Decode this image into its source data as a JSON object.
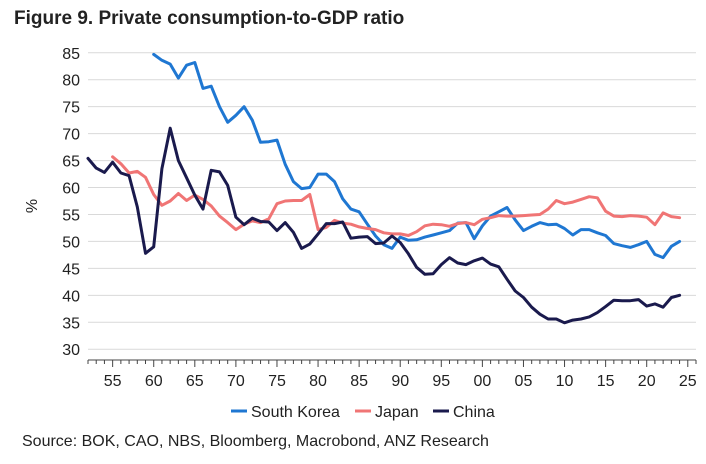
{
  "chart_data": {
    "type": "line",
    "title": "Figure 9. Private consumption-to-GDP ratio",
    "xlabel": "",
    "ylabel": "%",
    "xlim": [
      1952,
      2026
    ],
    "ylim": [
      28,
      87
    ],
    "y_ticks": [
      30,
      35,
      40,
      45,
      50,
      55,
      60,
      65,
      70,
      75,
      80,
      85
    ],
    "x_ticks": [
      {
        "value": 1955,
        "label": "55"
      },
      {
        "value": 1960,
        "label": "60"
      },
      {
        "value": 1965,
        "label": "65"
      },
      {
        "value": 1970,
        "label": "70"
      },
      {
        "value": 1975,
        "label": "75"
      },
      {
        "value": 1980,
        "label": "80"
      },
      {
        "value": 1985,
        "label": "85"
      },
      {
        "value": 1990,
        "label": "90"
      },
      {
        "value": 1995,
        "label": "95"
      },
      {
        "value": 2000,
        "label": "00"
      },
      {
        "value": 2005,
        "label": "05"
      },
      {
        "value": 2010,
        "label": "10"
      },
      {
        "value": 2015,
        "label": "15"
      },
      {
        "value": 2020,
        "label": "20"
      },
      {
        "value": 2025,
        "label": "25"
      }
    ],
    "legend_position": "bottom",
    "series": [
      {
        "name": "South Korea",
        "color": "#1f77d2",
        "x": [
          1960,
          1961,
          1962,
          1963,
          1964,
          1965,
          1966,
          1967,
          1968,
          1969,
          1970,
          1971,
          1972,
          1973,
          1974,
          1975,
          1976,
          1977,
          1978,
          1979,
          1980,
          1981,
          1982,
          1983,
          1984,
          1985,
          1986,
          1987,
          1988,
          1989,
          1990,
          1991,
          1992,
          1993,
          1994,
          1995,
          1996,
          1997,
          1998,
          1999,
          2000,
          2001,
          2002,
          2003,
          2004,
          2005,
          2006,
          2007,
          2008,
          2009,
          2010,
          2011,
          2012,
          2013,
          2014,
          2015,
          2016,
          2017,
          2018,
          2019,
          2020,
          2021,
          2022,
          2023,
          2024
        ],
        "y": [
          84.7,
          83.6,
          82.9,
          80.3,
          82.7,
          83.2,
          78.4,
          78.8,
          75.0,
          72.1,
          73.4,
          75.0,
          72.5,
          68.4,
          68.5,
          68.8,
          64.3,
          61.1,
          59.8,
          60.0,
          62.5,
          62.5,
          61.1,
          57.9,
          56.0,
          55.5,
          53.2,
          51.0,
          49.4,
          48.7,
          50.8,
          50.2,
          50.3,
          50.8,
          51.2,
          51.6,
          52.0,
          53.4,
          53.5,
          50.5,
          52.9,
          54.7,
          55.5,
          56.3,
          54.0,
          52.0,
          52.8,
          53.5,
          53.1,
          53.2,
          52.4,
          51.2,
          52.2,
          52.2,
          51.6,
          51.1,
          49.6,
          49.2,
          48.9,
          49.4,
          50.0,
          47.6,
          47.0,
          49.1,
          50.0
        ]
      },
      {
        "name": "Japan",
        "color": "#f07575",
        "x": [
          1955,
          1956,
          1957,
          1958,
          1959,
          1960,
          1961,
          1962,
          1963,
          1964,
          1965,
          1966,
          1967,
          1968,
          1969,
          1970,
          1971,
          1972,
          1973,
          1974,
          1975,
          1976,
          1977,
          1978,
          1979,
          1980,
          1981,
          1982,
          1983,
          1984,
          1985,
          1986,
          1987,
          1988,
          1989,
          1990,
          1991,
          1992,
          1993,
          1994,
          1995,
          1996,
          1997,
          1998,
          1999,
          2000,
          2001,
          2002,
          2003,
          2004,
          2005,
          2006,
          2007,
          2008,
          2009,
          2010,
          2011,
          2012,
          2013,
          2014,
          2015,
          2016,
          2017,
          2018,
          2019,
          2020,
          2021,
          2022,
          2023,
          2024
        ],
        "y": [
          65.7,
          64.4,
          62.7,
          63.0,
          61.9,
          58.7,
          56.7,
          57.5,
          58.9,
          57.6,
          58.6,
          57.8,
          56.6,
          54.7,
          53.5,
          52.2,
          53.2,
          53.8,
          53.5,
          54.2,
          57.0,
          57.5,
          57.6,
          57.6,
          58.7,
          52.2,
          52.6,
          53.9,
          53.4,
          53.2,
          52.7,
          52.4,
          52.2,
          51.6,
          51.4,
          51.4,
          51.1,
          51.8,
          52.9,
          53.2,
          53.1,
          52.8,
          53.3,
          53.5,
          53.1,
          54.1,
          54.4,
          54.8,
          54.7,
          54.7,
          54.8,
          54.9,
          55.0,
          56.0,
          57.6,
          57.0,
          57.3,
          57.8,
          58.3,
          58.1,
          55.6,
          54.7,
          54.6,
          54.8,
          54.7,
          54.5,
          53.1,
          55.3,
          54.6,
          54.4
        ]
      },
      {
        "name": "China",
        "color": "#1a1a4d",
        "x": [
          1952,
          1953,
          1954,
          1955,
          1956,
          1957,
          1958,
          1959,
          1960,
          1961,
          1962,
          1963,
          1964,
          1965,
          1966,
          1967,
          1968,
          1969,
          1970,
          1971,
          1972,
          1973,
          1974,
          1975,
          1976,
          1977,
          1978,
          1979,
          1980,
          1981,
          1982,
          1983,
          1984,
          1985,
          1986,
          1987,
          1988,
          1989,
          1990,
          1991,
          1992,
          1993,
          1994,
          1995,
          1996,
          1997,
          1998,
          1999,
          2000,
          2001,
          2002,
          2003,
          2004,
          2005,
          2006,
          2007,
          2008,
          2009,
          2010,
          2011,
          2012,
          2013,
          2014,
          2015,
          2016,
          2017,
          2018,
          2019,
          2020,
          2021,
          2022,
          2023,
          2024
        ],
        "y": [
          65.4,
          63.6,
          62.8,
          64.7,
          62.7,
          62.2,
          56.4,
          47.8,
          49.0,
          63.5,
          71.0,
          65.0,
          61.8,
          58.6,
          56.0,
          63.2,
          62.9,
          60.4,
          54.5,
          53.1,
          54.3,
          53.7,
          53.6,
          52.0,
          53.5,
          51.7,
          48.7,
          49.5,
          51.4,
          53.3,
          53.3,
          53.6,
          50.6,
          50.8,
          50.9,
          49.6,
          49.7,
          51.0,
          49.8,
          47.7,
          45.2,
          43.9,
          44.0,
          45.7,
          47.0,
          46.0,
          45.7,
          46.4,
          46.9,
          45.8,
          45.3,
          43.0,
          40.8,
          39.6,
          37.8,
          36.5,
          35.6,
          35.6,
          34.9,
          35.4,
          35.6,
          36.0,
          36.8,
          37.9,
          39.1,
          39.0,
          39.0,
          39.2,
          38.0,
          38.4,
          37.8,
          39.6,
          40.0
        ]
      }
    ]
  },
  "footer": {
    "source": "Source: BOK, CAO, NBS, Bloomberg, Macrobond, ANZ Research"
  }
}
